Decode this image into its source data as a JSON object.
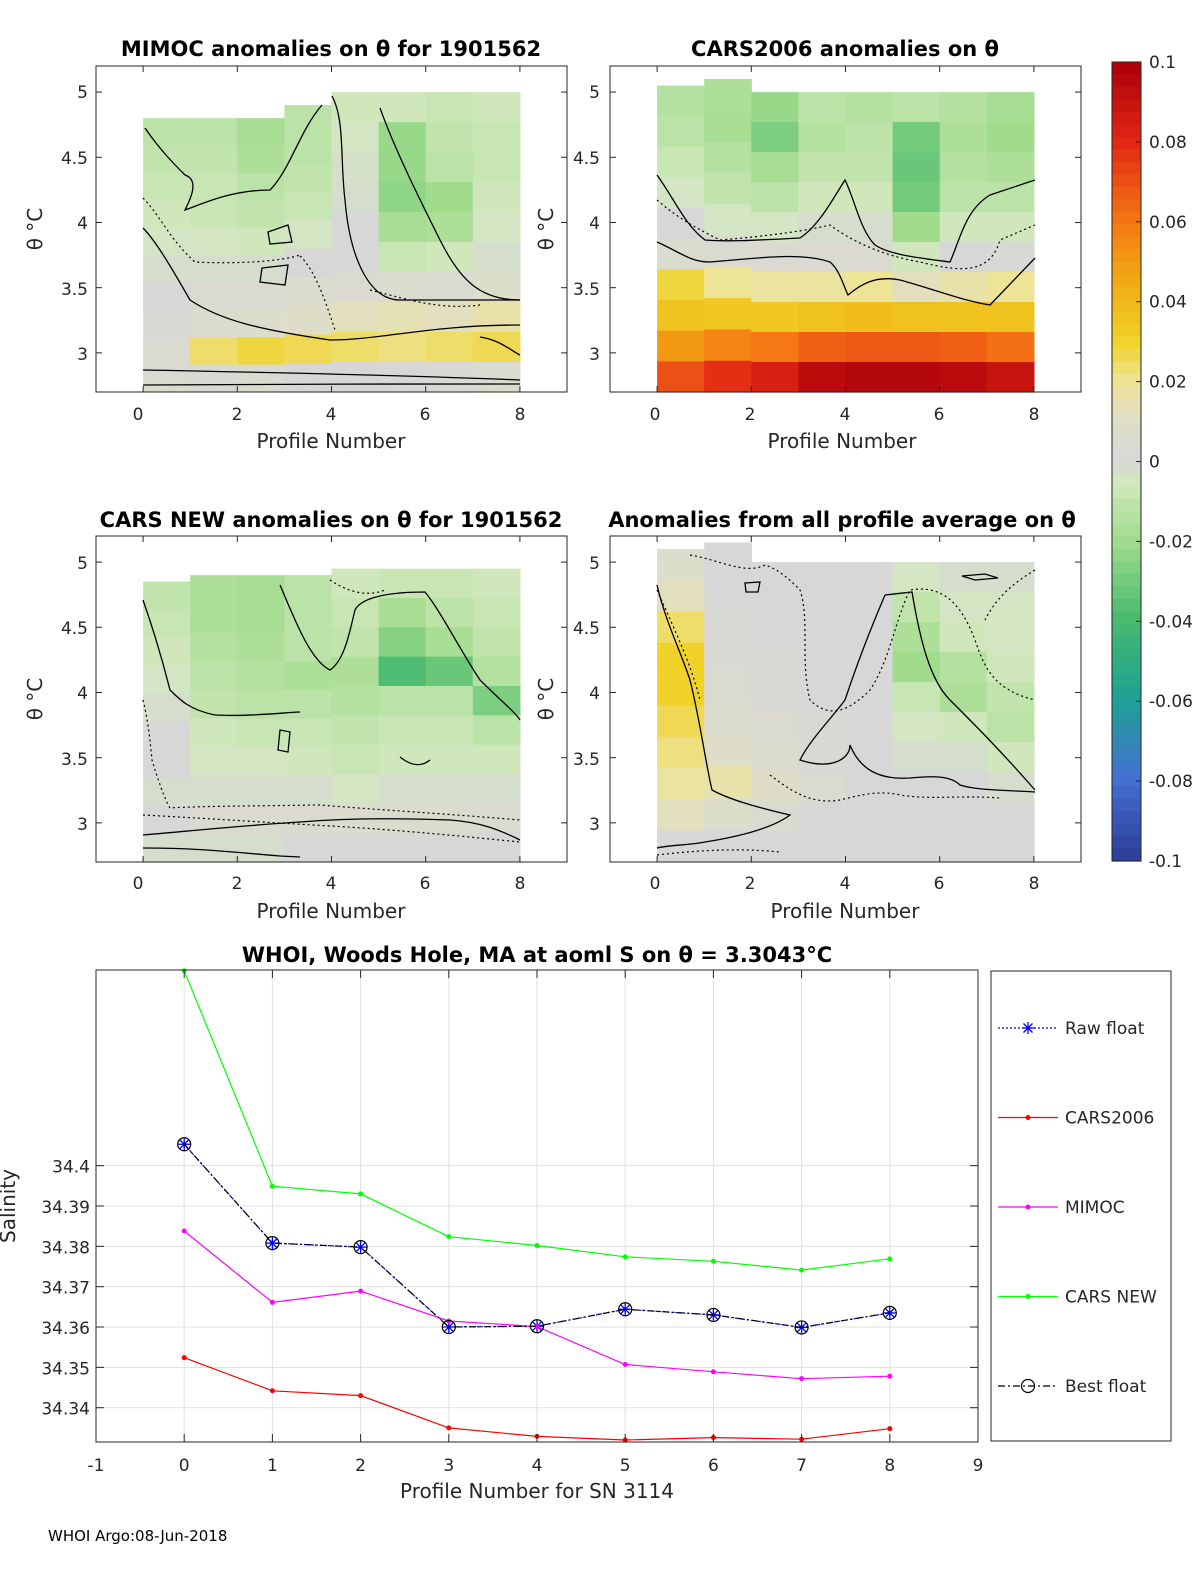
{
  "footer": "WHOI Argo:08-Jun-2018",
  "colorbar": {
    "ticks": [
      "0.1",
      "0.08",
      "0.06",
      "0.04",
      "0.02",
      "0",
      "-0.02",
      "-0.04",
      "-0.06",
      "-0.08",
      "-0.1"
    ],
    "range": [
      -0.1,
      0.1
    ]
  },
  "panels": [
    {
      "title": "MIMOC anomalies on θ  for 1901562",
      "xlabel": "Profile Number",
      "ylabel": "θ °C",
      "xticks": [
        "0",
        "2",
        "4",
        "6",
        "8"
      ],
      "yticks": [
        "5",
        "4.5",
        "4",
        "3.5",
        "3"
      ],
      "xlim": [
        -1,
        9
      ],
      "ylim": [
        2.7,
        5.2
      ],
      "tops": [
        4.8,
        4.8,
        4.8,
        4.9,
        5.0,
        5.0,
        5.0,
        5.0,
        5.0
      ],
      "columns": [
        [
          -0.012,
          -0.01,
          -0.008,
          -0.006,
          -0.004,
          -0.002,
          0.0,
          0.002,
          0.004,
          0.004
        ],
        [
          -0.012,
          -0.01,
          -0.008,
          -0.008,
          -0.004,
          -0.002,
          0.004,
          0.006,
          0.024,
          0.003
        ],
        [
          -0.018,
          -0.016,
          -0.012,
          -0.01,
          -0.006,
          -0.002,
          0.004,
          0.008,
          0.028,
          0.004
        ],
        [
          -0.012,
          -0.012,
          -0.01,
          -0.008,
          -0.004,
          0.0,
          0.006,
          0.01,
          0.026,
          0.0
        ],
        [
          -0.006,
          -0.004,
          -0.003,
          -0.002,
          0.0,
          0.0,
          0.004,
          0.012,
          0.024,
          0.0
        ],
        [
          -0.006,
          -0.022,
          -0.022,
          -0.024,
          -0.018,
          -0.008,
          0.006,
          0.014,
          0.022,
          0.0
        ],
        [
          -0.008,
          -0.01,
          -0.012,
          -0.02,
          -0.016,
          -0.006,
          0.004,
          0.012,
          0.024,
          0.002
        ],
        [
          -0.006,
          -0.008,
          -0.008,
          -0.006,
          -0.004,
          -0.002,
          0.008,
          0.016,
          0.026,
          0.004
        ]
      ]
    },
    {
      "title": "CARS2006 anomalies on θ",
      "xlabel": "Profile Number",
      "ylabel": "θ °C",
      "xticks": [
        "0",
        "2",
        "4",
        "6",
        "8"
      ],
      "yticks": [
        "5",
        "4.5",
        "4",
        "3.5",
        "3"
      ],
      "xlim": [
        -1,
        9
      ],
      "ylim": [
        2.7,
        5.2
      ],
      "tops": [
        5.05,
        5.1,
        5.0,
        5.0,
        5.0,
        5.0,
        5.0,
        5.0,
        5.0
      ],
      "columns": [
        [
          -0.014,
          -0.012,
          -0.008,
          -0.004,
          0.0,
          0.006,
          0.028,
          0.036,
          0.05,
          0.07
        ],
        [
          -0.016,
          -0.018,
          -0.014,
          -0.01,
          -0.004,
          0.004,
          0.02,
          0.034,
          0.056,
          0.078
        ],
        [
          -0.022,
          -0.028,
          -0.018,
          -0.012,
          -0.004,
          0.004,
          0.018,
          0.034,
          0.06,
          0.084
        ],
        [
          -0.012,
          -0.014,
          -0.01,
          -0.006,
          -0.002,
          0.004,
          0.018,
          0.036,
          0.066,
          0.094
        ],
        [
          -0.014,
          -0.012,
          -0.01,
          -0.006,
          -0.002,
          0.004,
          0.02,
          0.038,
          0.068,
          0.096
        ],
        [
          -0.012,
          -0.03,
          -0.032,
          -0.03,
          -0.02,
          -0.006,
          0.012,
          0.036,
          0.068,
          0.096
        ],
        [
          -0.014,
          -0.016,
          -0.014,
          -0.012,
          -0.006,
          0.0,
          0.016,
          0.036,
          0.066,
          0.094
        ],
        [
          -0.018,
          -0.02,
          -0.016,
          -0.012,
          -0.006,
          0.002,
          0.02,
          0.036,
          0.062,
          0.09
        ]
      ]
    },
    {
      "title": "CARS NEW anomalies on θ for 1901562",
      "xlabel": "Profile Number",
      "ylabel": "θ °C",
      "xticks": [
        "0",
        "2",
        "4",
        "6",
        "8"
      ],
      "yticks": [
        "5",
        "4.5",
        "4",
        "3.5",
        "3"
      ],
      "xlim": [
        -1,
        9
      ],
      "ylim": [
        2.7,
        5.2
      ],
      "tops": [
        4.85,
        4.9,
        4.9,
        4.9,
        4.95,
        4.95,
        4.95,
        4.95,
        4.95
      ],
      "columns": [
        [
          -0.01,
          -0.008,
          -0.006,
          -0.004,
          -0.002,
          0.0,
          0.0,
          -0.002,
          0.0,
          -0.002
        ],
        [
          -0.016,
          -0.016,
          -0.014,
          -0.012,
          -0.01,
          -0.006,
          -0.004,
          -0.002,
          0.004,
          -0.002
        ],
        [
          -0.018,
          -0.018,
          -0.016,
          -0.014,
          -0.012,
          -0.008,
          -0.004,
          -0.002,
          0.004,
          -0.002
        ],
        [
          -0.012,
          -0.012,
          -0.012,
          -0.016,
          -0.012,
          -0.008,
          -0.006,
          -0.002,
          0.004,
          0.0
        ],
        [
          -0.006,
          -0.008,
          -0.01,
          -0.016,
          -0.014,
          -0.01,
          -0.008,
          -0.004,
          0.006,
          0.0
        ],
        [
          -0.008,
          -0.018,
          -0.026,
          -0.038,
          -0.012,
          -0.008,
          -0.006,
          -0.002,
          0.006,
          0.0
        ],
        [
          -0.008,
          -0.012,
          -0.018,
          -0.032,
          -0.012,
          -0.008,
          -0.006,
          -0.002,
          0.006,
          0.0
        ],
        [
          -0.006,
          -0.008,
          -0.01,
          -0.014,
          -0.028,
          -0.012,
          -0.006,
          -0.002,
          0.004,
          0.0
        ]
      ]
    },
    {
      "title": "Anomalies from all profile average on θ",
      "xlabel": "Profile Number",
      "ylabel": "θ °C",
      "xticks": [
        "0",
        "2",
        "4",
        "6",
        "8"
      ],
      "yticks": [
        "5",
        "4.5",
        "4",
        "3.5",
        "3"
      ],
      "xlim": [
        -1,
        9
      ],
      "ylim": [
        2.7,
        5.2
      ],
      "tops": [
        5.1,
        5.15,
        5.0,
        5.0,
        5.0,
        5.0,
        5.0,
        5.0,
        5.0
      ],
      "columns": [
        [
          0.008,
          0.012,
          0.024,
          0.03,
          0.03,
          0.026,
          0.022,
          0.018,
          0.012,
          0.0
        ],
        [
          0.0,
          0.0,
          0.002,
          0.002,
          0.004,
          0.006,
          0.01,
          0.016,
          0.008,
          0.0
        ],
        [
          0.0,
          0.0,
          0.0,
          0.002,
          0.002,
          0.004,
          0.006,
          0.01,
          0.004,
          0.0
        ],
        [
          0.0,
          0.0,
          0.0,
          0.0,
          0.0,
          0.002,
          0.002,
          0.004,
          0.0,
          0.0
        ],
        [
          0.0,
          0.0,
          0.0,
          0.0,
          0.0,
          0.0,
          0.0,
          0.0,
          0.0,
          0.0
        ],
        [
          -0.004,
          -0.01,
          -0.016,
          -0.02,
          -0.008,
          -0.004,
          -0.002,
          0.0,
          0.0,
          0.0
        ],
        [
          -0.002,
          -0.004,
          -0.006,
          -0.014,
          -0.016,
          -0.006,
          -0.002,
          0.0,
          0.0,
          0.0
        ],
        [
          -0.002,
          -0.004,
          -0.004,
          -0.006,
          -0.01,
          -0.012,
          -0.006,
          -0.002,
          0.0,
          0.0
        ]
      ]
    }
  ],
  "chart_data": {
    "type": "line",
    "title": "WHOI, Woods Hole, MA at aoml S on θ = 3.3043°C",
    "xlabel": "Profile Number for SN 3114",
    "ylabel": "Salinity",
    "xlim": [
      -1,
      9
    ],
    "ylim": [
      34.3315,
      34.4485
    ],
    "xticks": [
      "-1",
      "0",
      "1",
      "2",
      "3",
      "4",
      "5",
      "6",
      "7",
      "8",
      "9"
    ],
    "yticks": [
      "34.4",
      "34.39",
      "34.38",
      "34.37",
      "34.36",
      "34.35",
      "34.34"
    ],
    "x": [
      0,
      1,
      2,
      3,
      4,
      5,
      6,
      7,
      8
    ],
    "series": [
      {
        "name": "Raw float",
        "color": "#0000ff",
        "values": [
          34.4053,
          34.3808,
          34.3798,
          34.36,
          34.3602,
          34.3644,
          34.363,
          34.3599,
          34.3635
        ]
      },
      {
        "name": "CARS2006",
        "color": "#ff0000",
        "values": [
          34.3524,
          34.3442,
          34.343,
          34.335,
          34.3329,
          34.332,
          34.3326,
          34.3322,
          34.3348
        ]
      },
      {
        "name": "MIMOC",
        "color": "#ff00ff",
        "values": [
          34.3838,
          34.3661,
          34.3689,
          34.3615,
          34.3601,
          34.3507,
          34.3489,
          34.3472,
          34.3478
        ]
      },
      {
        "name": "CARS NEW",
        "color": "#00ff00",
        "values": [
          34.4483,
          34.3949,
          34.393,
          34.3824,
          34.3802,
          34.3774,
          34.3763,
          34.3741,
          34.3769
        ]
      },
      {
        "name": "Best float",
        "color": "#000000",
        "values": [
          34.4053,
          34.3808,
          34.3798,
          34.36,
          34.3602,
          34.3644,
          34.363,
          34.3599,
          34.3635
        ]
      }
    ]
  }
}
